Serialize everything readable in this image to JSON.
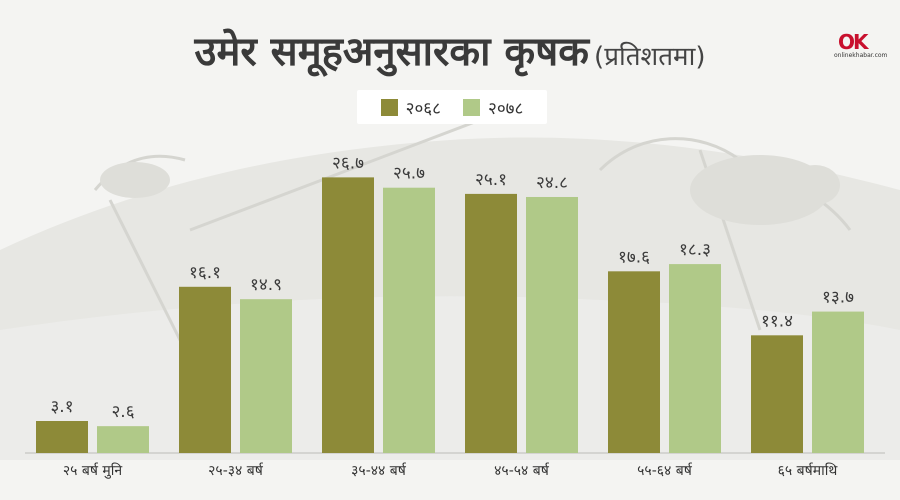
{
  "header": {
    "title": "उमेर समूहअनुसारका कृषक",
    "subtitle": "(प्रतिशतमा)"
  },
  "brand": {
    "logo_mark": "OK",
    "logo_text": "onlinekhabar.com"
  },
  "chart_data": {
    "type": "bar",
    "categories": [
      "२५ बर्ष मुनि",
      "२५-३४ बर्ष",
      "३५-४४ बर्ष",
      "४५-५४ बर्ष",
      "५५-६४ बर्ष",
      "६५ बर्षमाथि"
    ],
    "series": [
      {
        "name": "२०६८",
        "color": "#8d8a38",
        "values": [
          3.1,
          16.1,
          26.7,
          25.1,
          17.6,
          11.4
        ],
        "labels": [
          "३.१",
          "१६.१",
          "२६.७",
          "२५.१",
          "१७.६",
          "११.४"
        ]
      },
      {
        "name": "२०७८",
        "color": "#b0c988",
        "values": [
          2.6,
          14.9,
          25.7,
          24.8,
          18.3,
          13.7
        ],
        "labels": [
          "२.६",
          "१४.९",
          "२५.७",
          "२४.८",
          "१८.३",
          "१३.७"
        ]
      }
    ],
    "ylim": [
      0,
      30
    ],
    "grid": false,
    "legend_position": "top-center"
  }
}
